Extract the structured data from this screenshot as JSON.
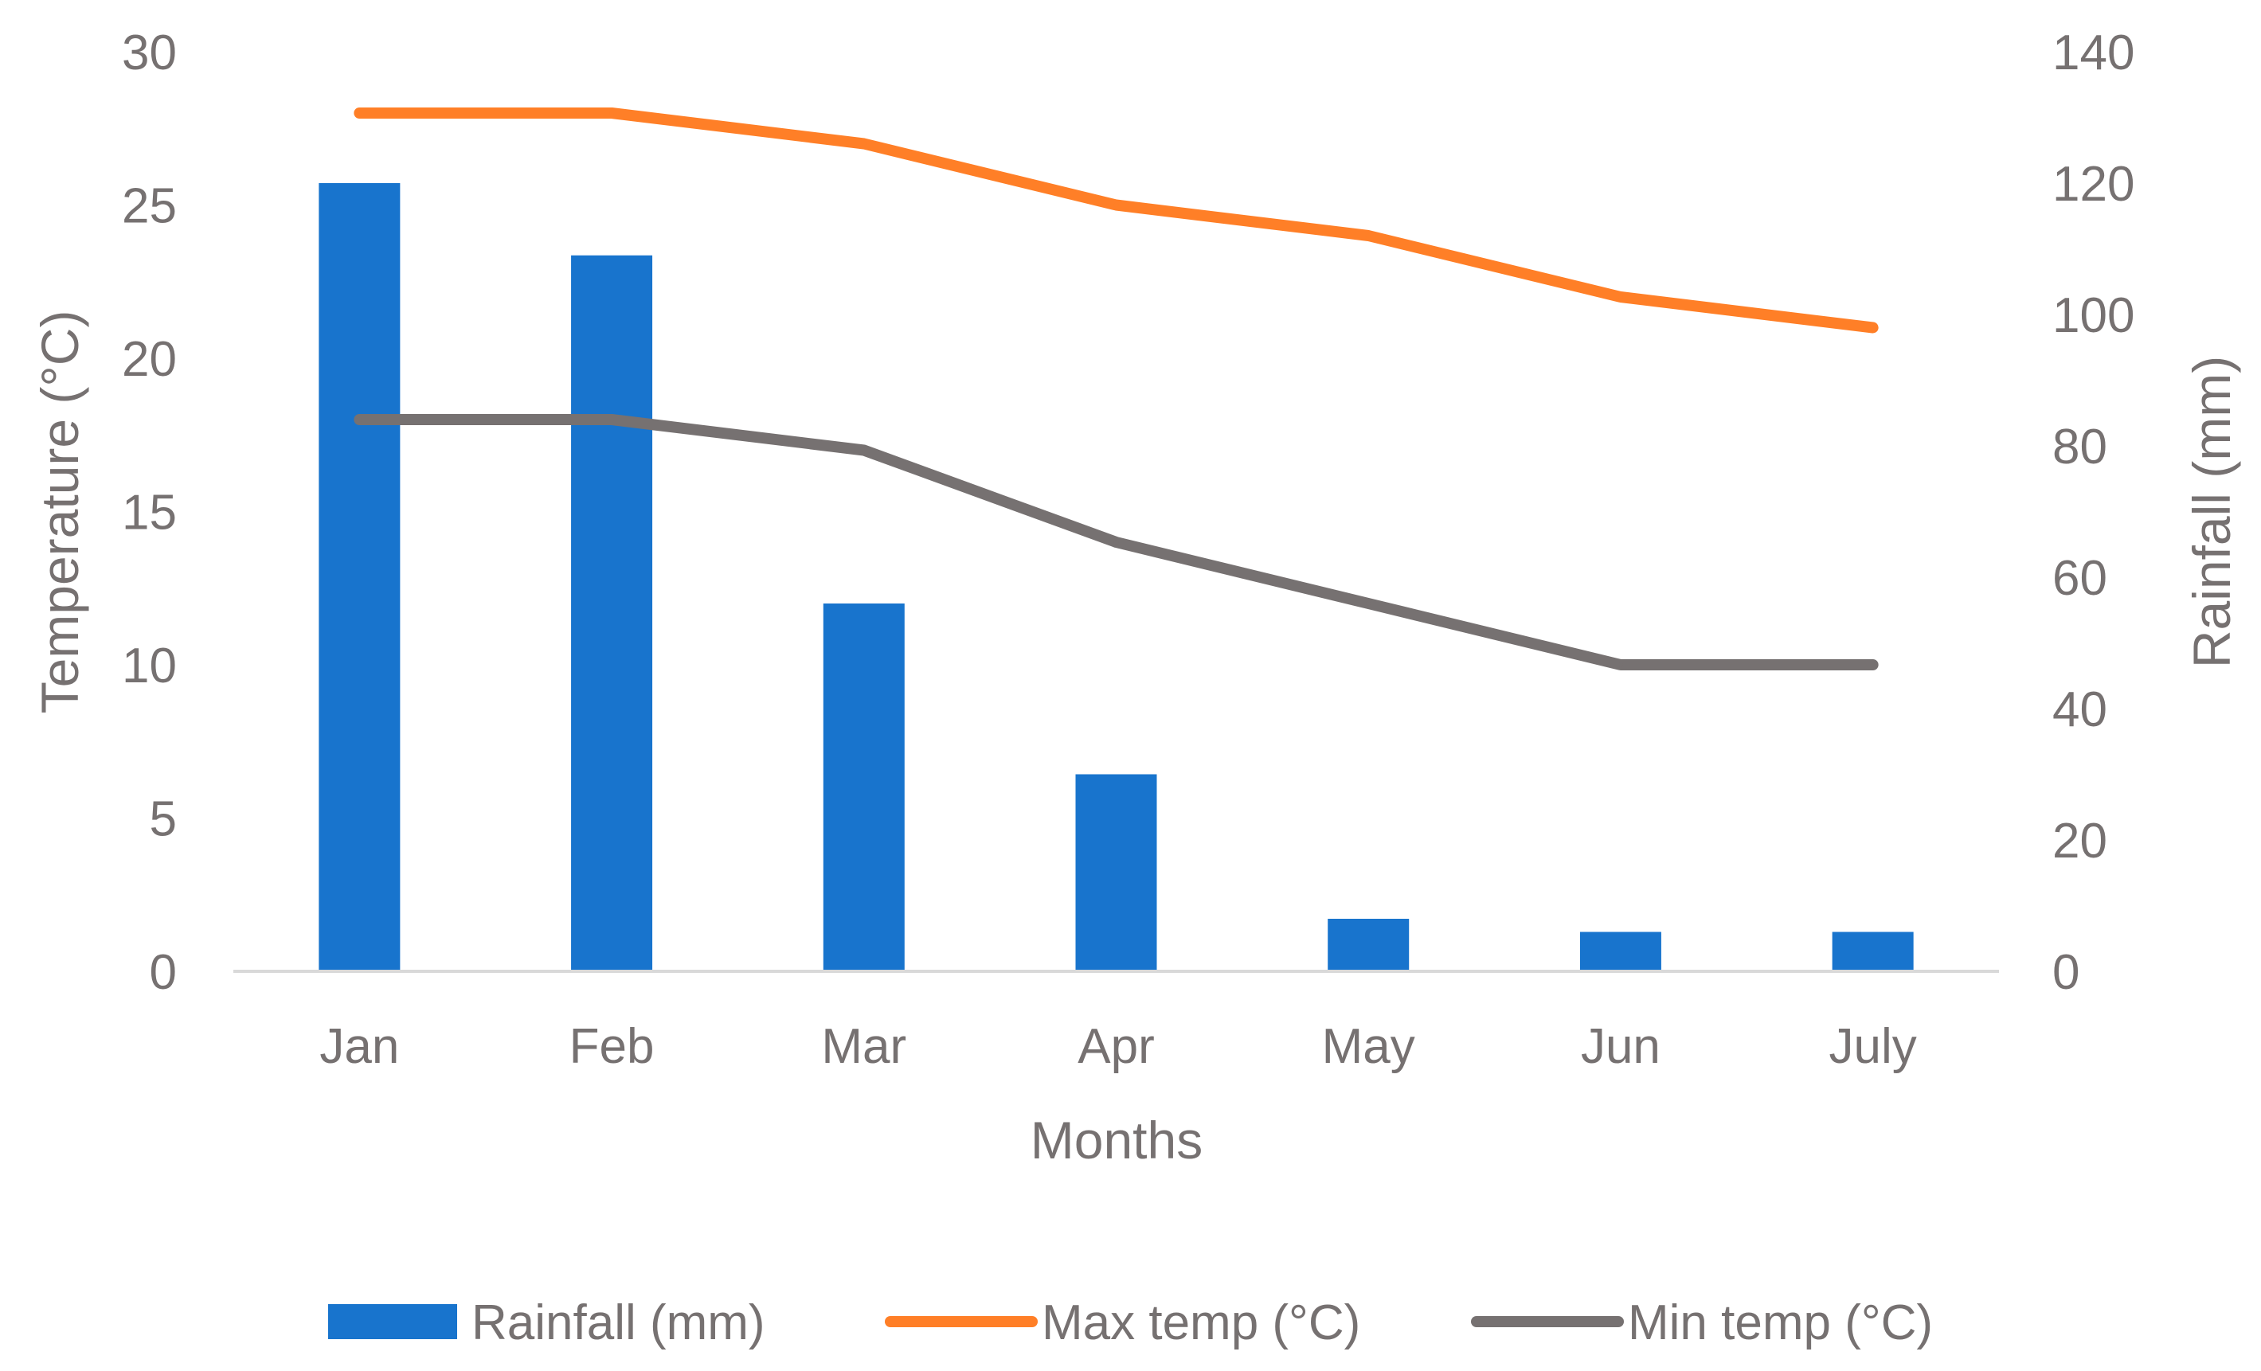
{
  "chart_data": {
    "type": "bar+line",
    "categories": [
      "Jan",
      "Feb",
      "Mar",
      "Apr",
      "May",
      "Jun",
      "July"
    ],
    "xlabel": "Months",
    "ylabel_left": "Temperature (°C)",
    "ylabel_right": "Rainfall (mm)",
    "ylim_left": [
      0,
      30
    ],
    "yticks_left": [
      "0",
      "5",
      "10",
      "15",
      "20",
      "25",
      "30"
    ],
    "ylim_right": [
      0,
      140
    ],
    "yticks_right": [
      "0",
      "20",
      "40",
      "60",
      "80",
      "100",
      "120",
      "140"
    ],
    "grid": false,
    "legend_position": "bottom",
    "series": [
      {
        "name": "Rainfall (mm)",
        "kind": "bar",
        "axis": "right",
        "color": "#1874CD",
        "values": [
          120,
          109,
          56,
          30,
          8,
          6,
          6
        ]
      },
      {
        "name": "Max temp (°C)",
        "kind": "line",
        "axis": "left",
        "color": "#FF7F27",
        "values": [
          28,
          28,
          27,
          25,
          24,
          22,
          21
        ]
      },
      {
        "name": "Min temp (°C)",
        "kind": "line",
        "axis": "left",
        "color": "#767171",
        "values": [
          18,
          18,
          17,
          14,
          12,
          10,
          10
        ]
      }
    ]
  }
}
